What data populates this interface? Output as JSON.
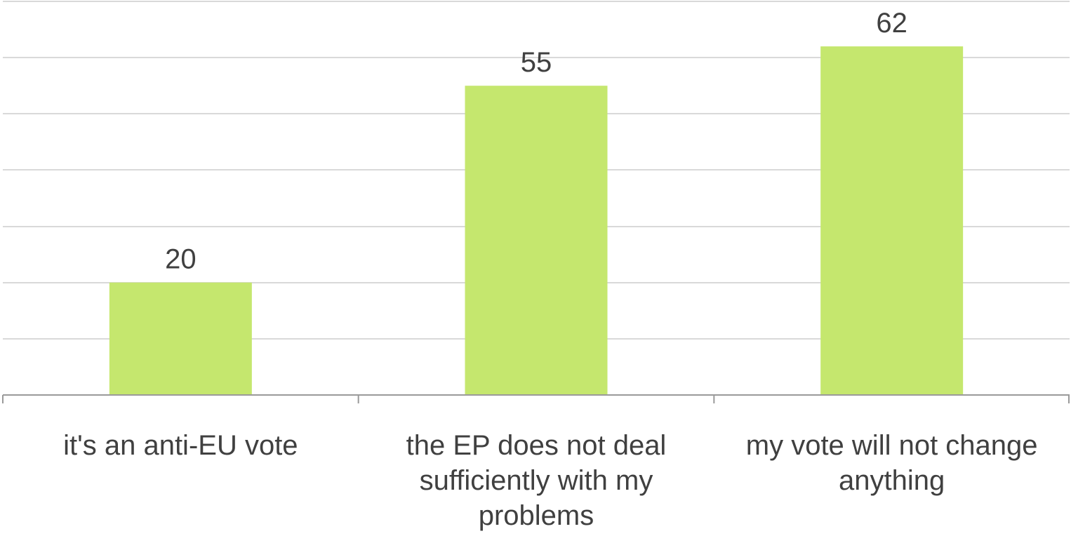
{
  "chart_data": {
    "type": "bar",
    "categories": [
      "it's an anti-EU vote",
      "the EP does not deal sufficiently with my problems",
      "my vote will not change anything"
    ],
    "values": [
      20,
      55,
      62
    ],
    "ylim": [
      0,
      70
    ],
    "grid": true,
    "bar_color": "#c5e76e",
    "label_color": "#404040",
    "grid_color": "#d9d9d9"
  }
}
